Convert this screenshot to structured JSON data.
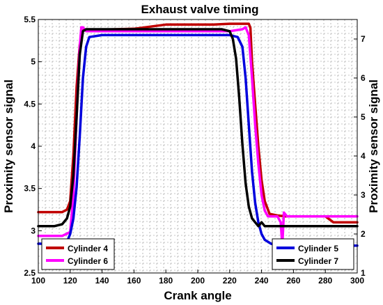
{
  "chart_data": {
    "type": "line",
    "title": "Exhaust valve timing",
    "xlabel": "Crank angle",
    "ylabel_left": "Proximity sensor signal",
    "ylabel_right": "Proximity sensor signal",
    "xlim": [
      100,
      300
    ],
    "ylim_left": [
      2.5,
      5.5
    ],
    "ylim_right": [
      1,
      7.5
    ],
    "x_ticks": [
      "100",
      "120",
      "140",
      "160",
      "180",
      "200",
      "220",
      "240",
      "260",
      "280",
      "300"
    ],
    "y_ticks_left": [
      "2.5",
      "3",
      "3.5",
      "4",
      "4.5",
      "5",
      "5.5"
    ],
    "y_ticks_right": [
      "1",
      "2",
      "3",
      "4",
      "5",
      "6",
      "7"
    ],
    "grid": true,
    "grid_style": "dashed",
    "legends": [
      {
        "placement": "bottom-left",
        "entries": [
          "Cylinder 4",
          "Cylinder 6"
        ]
      },
      {
        "placement": "bottom-right",
        "entries": [
          "Cylinder 5",
          "Cylinder 7"
        ]
      }
    ],
    "series": [
      {
        "name": "Cylinder 4",
        "color": "#c00000",
        "axis": "left",
        "x": [
          100,
          115,
          118,
          120,
          122,
          124,
          126,
          128,
          130,
          140,
          160,
          180,
          200,
          210,
          220,
          225,
          228,
          230,
          232,
          233,
          234,
          236,
          238,
          240,
          242,
          245,
          250,
          255,
          260,
          270,
          275,
          280,
          285,
          290,
          300
        ],
        "y": [
          3.22,
          3.22,
          3.25,
          3.35,
          3.9,
          4.7,
          5.2,
          5.37,
          5.38,
          5.38,
          5.39,
          5.44,
          5.44,
          5.44,
          5.45,
          5.45,
          5.45,
          5.45,
          5.45,
          5.4,
          5.0,
          4.5,
          4.0,
          3.6,
          3.35,
          3.2,
          3.18,
          3.17,
          3.17,
          3.17,
          3.17,
          3.17,
          3.1,
          3.1,
          3.1
        ]
      },
      {
        "name": "Cylinder 6",
        "color": "#ff00ff",
        "axis": "right",
        "x": [
          100,
          115,
          120,
          122,
          124,
          126,
          127,
          128,
          130,
          140,
          160,
          180,
          200,
          220,
          228,
          230,
          232,
          234,
          236,
          238,
          240,
          242,
          244,
          246,
          248,
          250,
          252,
          253,
          254,
          256,
          260,
          280,
          300
        ],
        "y": [
          1.95,
          1.95,
          2.05,
          3.0,
          5.0,
          6.8,
          7.3,
          7.3,
          7.2,
          7.2,
          7.2,
          7.2,
          7.2,
          7.2,
          7.25,
          7.3,
          7.1,
          6.0,
          4.8,
          3.8,
          3.0,
          2.6,
          2.45,
          2.45,
          2.45,
          2.45,
          2.3,
          1.7,
          2.55,
          2.45,
          2.45,
          2.45,
          2.45
        ]
      },
      {
        "name": "Cylinder 5",
        "color": "#0000dd",
        "axis": "right",
        "x": [
          100,
          115,
          118,
          120,
          122,
          124,
          126,
          128,
          130,
          132,
          140,
          160,
          180,
          200,
          220,
          225,
          228,
          230,
          232,
          234,
          236,
          238,
          240,
          242,
          244,
          246,
          250,
          255,
          260,
          280,
          300
        ],
        "y": [
          1.75,
          1.75,
          1.8,
          2.0,
          2.4,
          3.2,
          4.5,
          6.0,
          6.8,
          7.05,
          7.1,
          7.1,
          7.1,
          7.1,
          7.1,
          7.05,
          6.8,
          6.0,
          4.8,
          3.6,
          2.8,
          2.3,
          2.0,
          1.85,
          1.8,
          1.75,
          1.7,
          1.7,
          1.7,
          1.7,
          1.7
        ]
      },
      {
        "name": "Cylinder 7",
        "color": "#000000",
        "axis": "right",
        "x": [
          100,
          110,
          115,
          118,
          120,
          122,
          124,
          126,
          128,
          130,
          132,
          140,
          160,
          180,
          200,
          215,
          220,
          222,
          224,
          226,
          228,
          230,
          232,
          234,
          236,
          238,
          240,
          242,
          245,
          250,
          260,
          280,
          300
        ],
        "y": [
          2.2,
          2.2,
          2.25,
          2.4,
          2.7,
          3.5,
          5.0,
          6.6,
          7.2,
          7.25,
          7.25,
          7.25,
          7.25,
          7.25,
          7.25,
          7.25,
          7.2,
          7.0,
          6.5,
          5.5,
          4.3,
          3.3,
          2.7,
          2.4,
          2.3,
          2.2,
          2.3,
          2.2,
          2.2,
          2.2,
          2.2,
          2.2,
          2.2
        ]
      }
    ]
  }
}
